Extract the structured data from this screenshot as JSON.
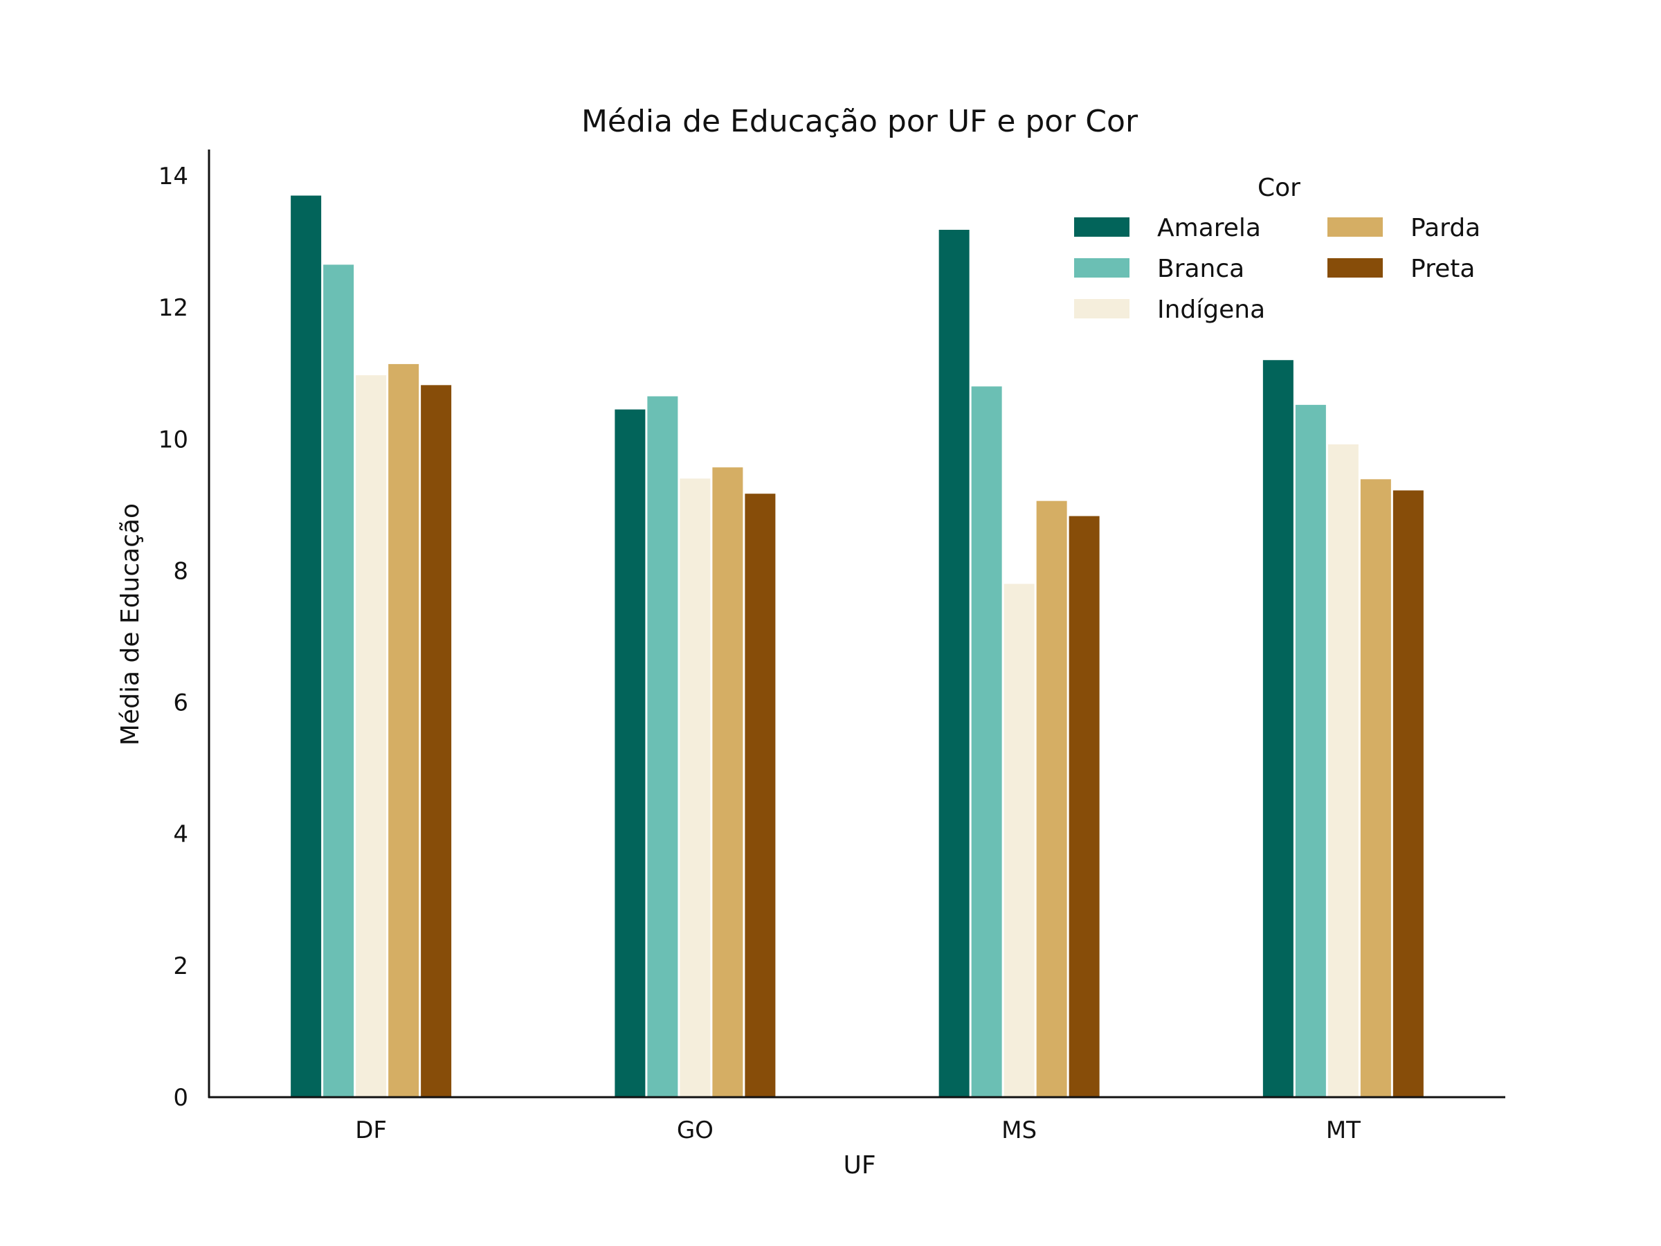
{
  "chart_data": {
    "type": "bar",
    "title": "Média de Educação por UF e por Cor",
    "xlabel": "UF",
    "ylabel": "Média de Educação",
    "categories": [
      "DF",
      "GO",
      "MS",
      "MT"
    ],
    "ylim": [
      0,
      14.4
    ],
    "yticks": [
      "0",
      "2",
      "4",
      "6",
      "8",
      "10",
      "12",
      "14"
    ],
    "grid": false,
    "legend": {
      "title": "Cor",
      "placement": "top-right",
      "columns": 2
    },
    "series": [
      {
        "name": "Amarela",
        "color": "#02645a",
        "values": [
          13.7,
          10.45,
          13.18,
          11.2
        ]
      },
      {
        "name": "Branca",
        "color": "#6bbfb4",
        "values": [
          12.65,
          10.65,
          10.8,
          10.52
        ]
      },
      {
        "name": "Indígena",
        "color": "#f5eedc",
        "values": [
          10.97,
          9.4,
          7.8,
          9.92
        ]
      },
      {
        "name": "Parda",
        "color": "#d5ae64",
        "values": [
          11.14,
          9.57,
          9.06,
          9.39
        ]
      },
      {
        "name": "Preta",
        "color": "#874d09",
        "values": [
          10.82,
          9.17,
          8.83,
          9.22
        ]
      }
    ]
  }
}
